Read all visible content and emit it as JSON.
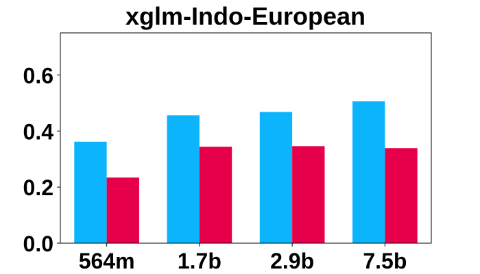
{
  "chart_data": {
    "type": "bar",
    "title": "xglm-Indo-European",
    "xlabel": "",
    "ylabel": "",
    "categories": [
      "564m",
      "1.7b",
      "2.9b",
      "7.5b"
    ],
    "series": [
      {
        "values": [
          0.362,
          0.456,
          0.468,
          0.506
        ],
        "color": "#0cb4fc"
      },
      {
        "values": [
          0.234,
          0.344,
          0.346,
          0.339
        ],
        "color": "#e6004a"
      }
    ],
    "ylim": [
      0,
      0.75
    ],
    "yticks": [
      0.0,
      0.2,
      0.4,
      0.6
    ],
    "ytick_labels": [
      "0.0",
      "0.2",
      "0.4",
      "0.6"
    ],
    "grid": false,
    "legend": "none"
  }
}
